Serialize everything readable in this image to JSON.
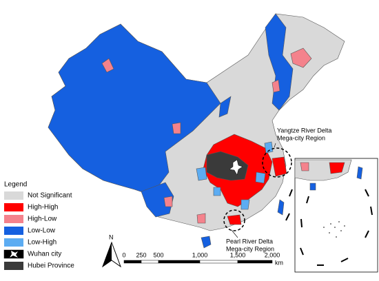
{
  "legend": {
    "title": "Legend",
    "items": [
      {
        "label": "Not Significant",
        "color": "#d9d9d9"
      },
      {
        "label": "High-High",
        "color": "#ff0000"
      },
      {
        "label": "High-Low",
        "color": "#f4828c"
      },
      {
        "label": "Low-Low",
        "color": "#1560e0"
      },
      {
        "label": "Low-High",
        "color": "#5cacf2"
      },
      {
        "label": "Wuhan city",
        "color": "#ffffff"
      },
      {
        "label": "Hubei Province",
        "color": "#3a3a3a"
      }
    ]
  },
  "annotations": [
    {
      "lines": [
        "Yangtze River Delta",
        "Mega-city Region"
      ]
    },
    {
      "lines": [
        "Pearl River Delta",
        "Mega-city Region"
      ]
    }
  ],
  "north_arrow": "N",
  "scale_bar": {
    "labels": [
      "0",
      "250",
      "500",
      "1,000",
      "1,500",
      "2,000"
    ],
    "unit": "km"
  }
}
